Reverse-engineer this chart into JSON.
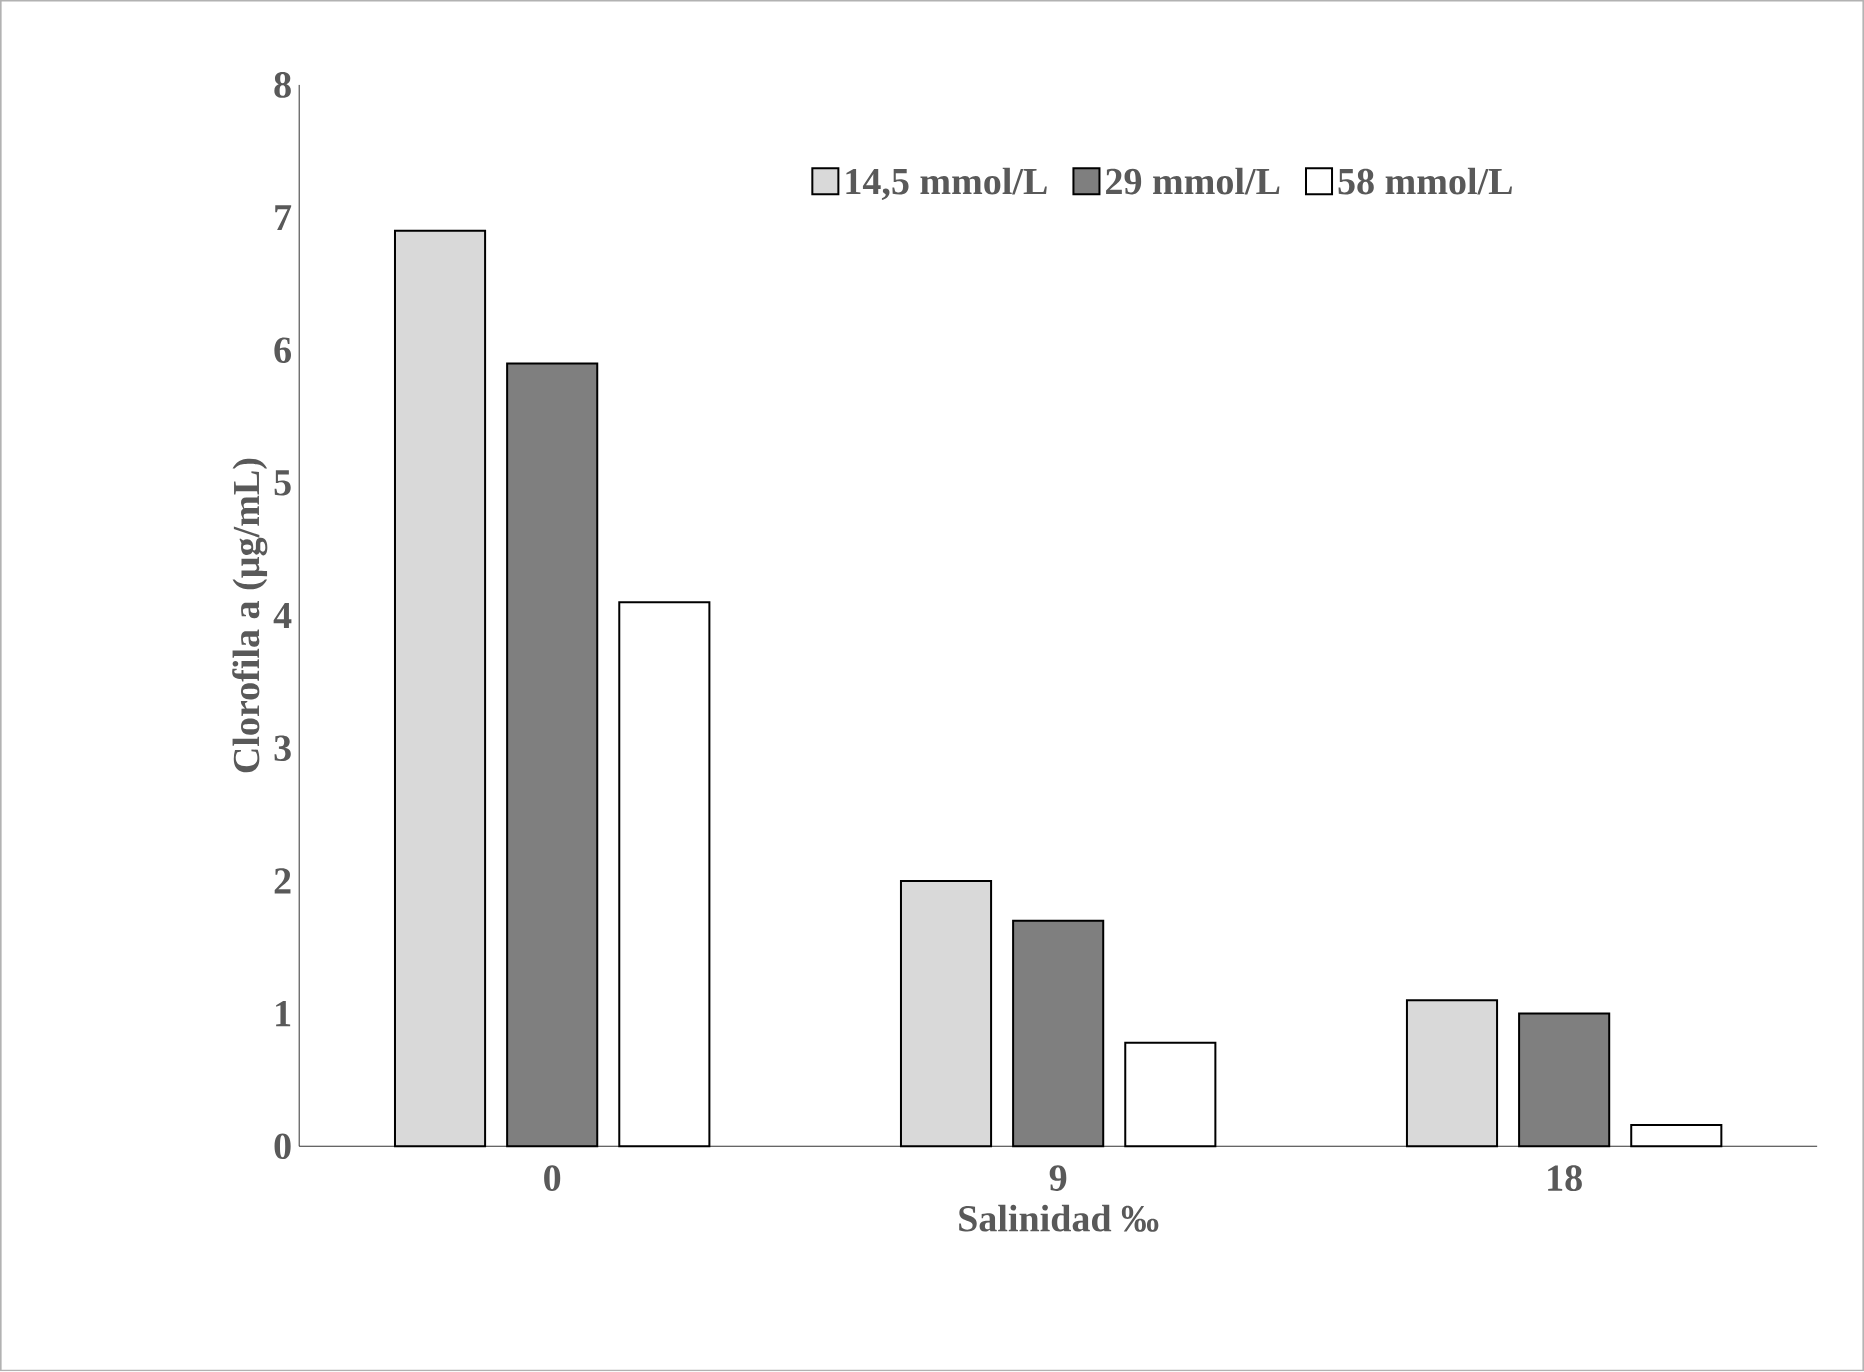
{
  "chart_data": {
    "type": "bar",
    "xlabel": "Salinidad ‰",
    "ylabel": "Clorofila  a (µg/mL)",
    "categories": [
      "0",
      "9",
      "18"
    ],
    "series": [
      {
        "name": "14,5 mmol/L",
        "color": "#d9d9d9",
        "values": [
          6.9,
          2.0,
          1.1
        ]
      },
      {
        "name": "29 mmol/L",
        "color": "#7f7f7f",
        "values": [
          5.9,
          1.7,
          1.0
        ]
      },
      {
        "name": "58 mmol/L",
        "color": "#ffffff",
        "values": [
          4.1,
          0.78,
          0.16
        ]
      }
    ],
    "ylim": [
      0,
      8
    ],
    "yticks": [
      0,
      1,
      2,
      3,
      4,
      5,
      6,
      7,
      8
    ],
    "grid": false,
    "legend": "top"
  }
}
